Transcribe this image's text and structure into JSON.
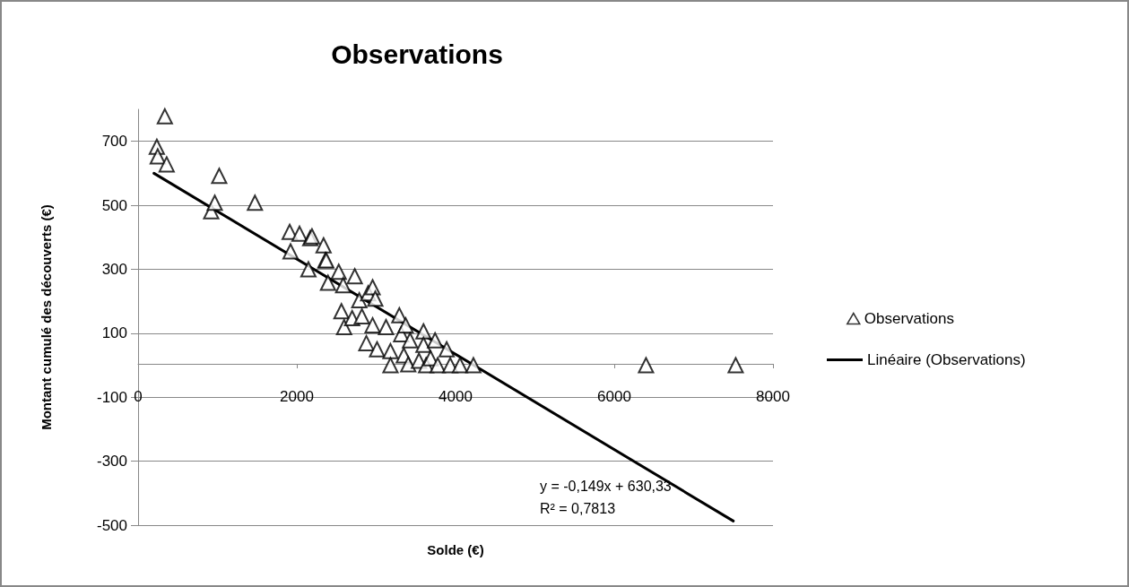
{
  "chart_data": {
    "type": "scatter",
    "title": "Observations",
    "xlabel": "Solde (€)",
    "ylabel": "Montant cumulé des découverts (€)",
    "annotations": [
      "y = -0,149x + 630,33",
      "R² = 0,7813"
    ],
    "xlim": [
      0,
      8000
    ],
    "xticks": [
      0,
      2000,
      4000,
      6000,
      8000
    ],
    "ylim": [
      -500,
      800
    ],
    "yticks": [
      -500,
      -300,
      -100,
      100,
      300,
      500,
      700
    ],
    "grid": "y",
    "legend": "right",
    "marker": "triangle",
    "series": [
      {
        "name": "Observations",
        "color": "#000000",
        "x": [
          236,
          247,
          337,
          360,
          921,
          966,
          1022,
          1472,
          1910,
          1921,
          2034,
          2146,
          2169,
          2191,
          2337,
          2360,
          2371,
          2393,
          2528,
          2562,
          2584,
          2596,
          2697,
          2730,
          2787,
          2820,
          2876,
          2899,
          2955,
          2955,
          2989,
          3011,
          3124,
          3180,
          3180,
          3292,
          3315,
          3348,
          3371,
          3404,
          3427,
          3539,
          3596,
          3596,
          3629,
          3685,
          3742,
          3775,
          3888,
          3933,
          4056,
          4225,
          6400,
          7530
        ],
        "values": [
          683,
          653,
          778,
          628,
          481,
          508,
          592,
          508,
          417,
          356,
          411,
          300,
          397,
          403,
          375,
          328,
          328,
          258,
          292,
          169,
          250,
          119,
          147,
          278,
          203,
          153,
          69,
          225,
          244,
          125,
          208,
          50,
          119,
          44,
          0,
          156,
          97,
          31,
          125,
          3,
          78,
          14,
          106,
          64,
          0,
          22,
          78,
          0,
          50,
          0,
          0,
          0,
          0,
          0
        ]
      },
      {
        "name": "Linéaire (Observations)",
        "type": "line",
        "color": "#000000",
        "marker": "none",
        "line_style": "solid",
        "x": [
          200,
          7500
        ],
        "values": [
          600,
          -487
        ]
      }
    ]
  }
}
